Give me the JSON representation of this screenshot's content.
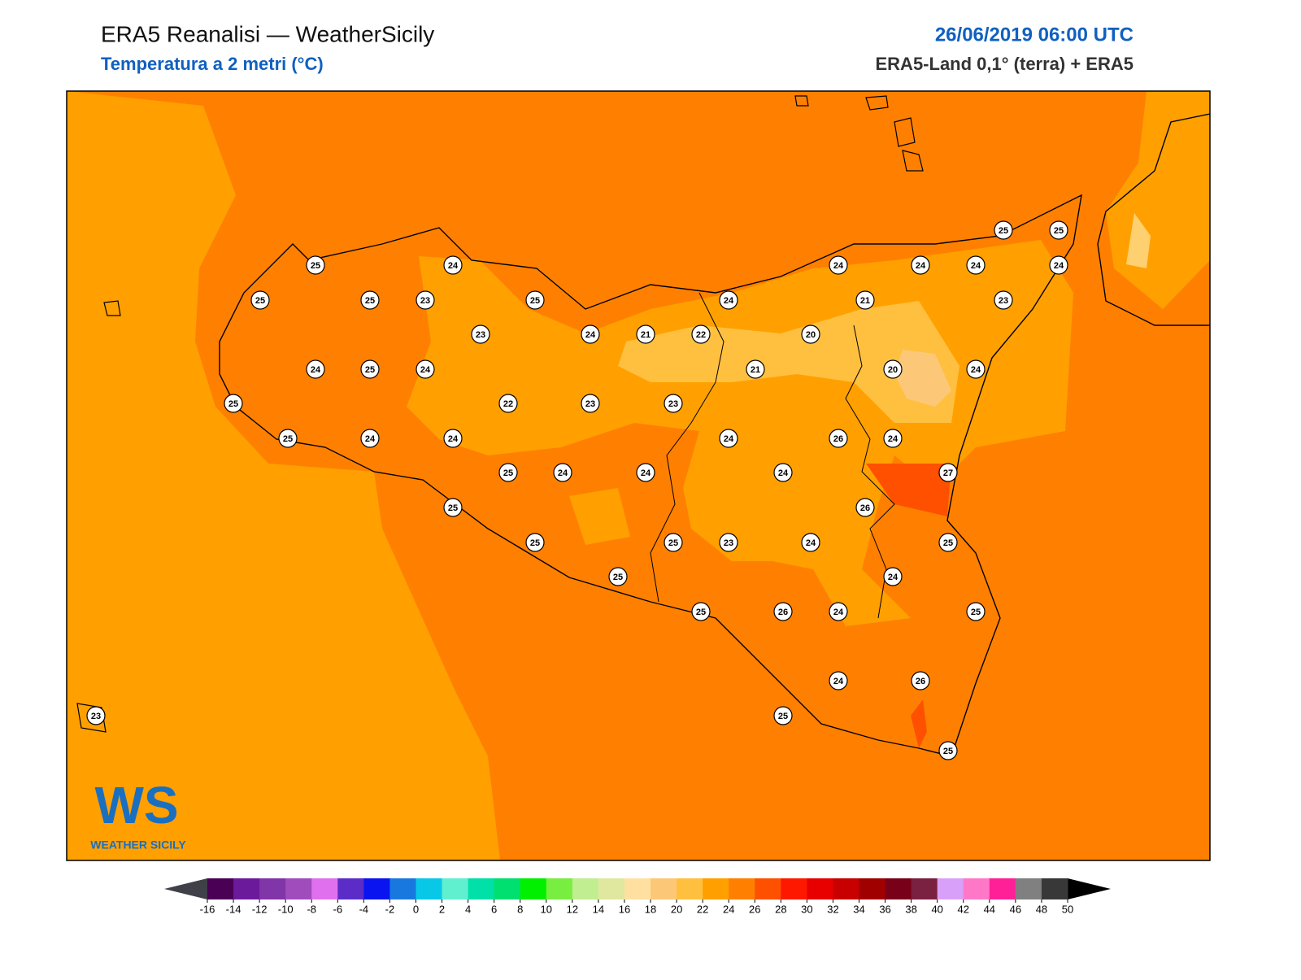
{
  "title": "ERA5 Reanalisi — WeatherSicily",
  "subtitle": "Temperatura a 2 metri (°C)",
  "datetime": "26/06/2019 06:00 UTC",
  "source": "ERA5-Land 0,1° (terra) + ERA5",
  "logo": {
    "text": "WS",
    "caption": "WEATHER SICILY"
  },
  "stations": [
    25,
    24,
    25,
    25,
    23,
    25,
    23,
    24,
    21,
    22,
    24,
    20,
    24,
    21,
    24,
    24,
    25,
    25,
    24,
    23,
    24,
    25,
    24,
    21,
    20,
    24,
    25,
    22,
    23,
    23,
    25,
    24,
    24,
    24,
    26,
    24,
    25,
    24,
    24,
    24,
    27,
    25,
    26,
    25,
    25,
    23,
    24,
    25,
    25,
    24,
    25,
    26,
    24,
    25,
    24,
    26,
    25,
    25,
    23
  ],
  "colorbar": {
    "ticks": [
      -16,
      -14,
      -12,
      -10,
      -8,
      -6,
      -4,
      -2,
      0,
      2,
      4,
      6,
      8,
      10,
      12,
      14,
      16,
      18,
      20,
      22,
      24,
      26,
      28,
      30,
      32,
      34,
      36,
      38,
      40,
      42,
      44,
      46,
      48,
      50
    ],
    "colors": [
      "#4a0055",
      "#6c1a9c",
      "#8035a8",
      "#a04cbc",
      "#e070ee",
      "#5c2cc8",
      "#0a14f0",
      "#1878e0",
      "#08c8e8",
      "#60f0d0",
      "#00e0a8",
      "#00e070",
      "#00f000",
      "#78ee40",
      "#c0ee90",
      "#e0e8a0",
      "#ffe0a0",
      "#fcc878",
      "#ffc040",
      "#ffa000",
      "#ff8000",
      "#ff5000",
      "#ff1800",
      "#e80000",
      "#c80000",
      "#a00000",
      "#780018",
      "#7a2040",
      "#d8a0f8",
      "#ff78c8",
      "#ff2098",
      "#808080",
      "#383838"
    ],
    "under_color": "#404048",
    "over_color": "#000000"
  }
}
